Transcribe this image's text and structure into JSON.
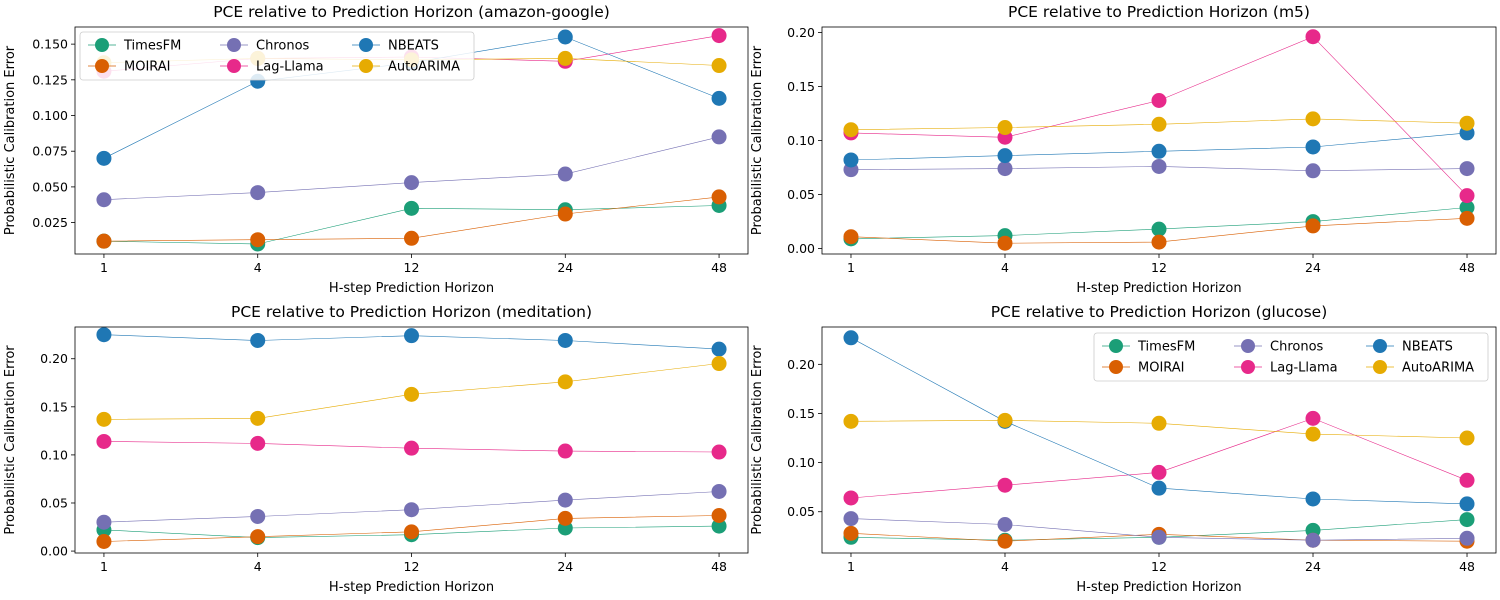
{
  "figure": {
    "colors": {
      "TimesFM": "#1b9e77",
      "MOIRAI": "#d95f02",
      "Chronos": "#7570b3",
      "Lag-Llama": "#e7298a",
      "NBEATS": "#1f77b4",
      "AutoARIMA": "#e6ab02"
    }
  },
  "chart_data": [
    {
      "type": "line",
      "title": "PCE relative to Prediction Horizon (amazon-google)",
      "xlabel": "H-step Prediction Horizon",
      "ylabel": "Probabilistic Calibration Error",
      "categories": [
        "1",
        "4",
        "12",
        "24",
        "48"
      ],
      "ylim": [
        0.003,
        0.162
      ],
      "yticks": [
        0.025,
        0.05,
        0.075,
        0.1,
        0.125,
        0.15
      ],
      "ytick_labels": [
        "0.025",
        "0.050",
        "0.075",
        "0.100",
        "0.125",
        "0.150"
      ],
      "legend": {
        "show": true,
        "position": "upper-left",
        "columns": 3
      },
      "series": [
        {
          "name": "TimesFM",
          "values": [
            0.012,
            0.01,
            0.035,
            0.034,
            0.037
          ]
        },
        {
          "name": "MOIRAI",
          "values": [
            0.012,
            0.013,
            0.014,
            0.031,
            0.043
          ]
        },
        {
          "name": "Chronos",
          "values": [
            0.041,
            0.046,
            0.053,
            0.059,
            0.085
          ]
        },
        {
          "name": "Lag-Llama",
          "values": [
            0.131,
            0.14,
            0.141,
            0.138,
            0.156
          ]
        },
        {
          "name": "NBEATS",
          "values": [
            0.07,
            0.124,
            0.137,
            0.155,
            0.112
          ]
        },
        {
          "name": "AutoARIMA",
          "values": [
            0.137,
            0.14,
            0.139,
            0.14,
            0.135
          ]
        }
      ]
    },
    {
      "type": "line",
      "title": "PCE relative to Prediction Horizon (m5)",
      "xlabel": "H-step Prediction Horizon",
      "ylabel": "Probabilistic Calibration Error",
      "categories": [
        "1",
        "4",
        "12",
        "24",
        "48"
      ],
      "ylim": [
        -0.005,
        0.205
      ],
      "yticks": [
        0,
        0.05,
        0.1,
        0.15,
        0.2
      ],
      "ytick_labels": [
        "0.00",
        "0.05",
        "0.10",
        "0.15",
        "0.20"
      ],
      "legend": {
        "show": false
      },
      "series": [
        {
          "name": "TimesFM",
          "values": [
            0.009,
            0.012,
            0.018,
            0.025,
            0.038
          ]
        },
        {
          "name": "MOIRAI",
          "values": [
            0.011,
            0.005,
            0.006,
            0.021,
            0.028
          ]
        },
        {
          "name": "Chronos",
          "values": [
            0.073,
            0.074,
            0.076,
            0.072,
            0.074
          ]
        },
        {
          "name": "Lag-Llama",
          "values": [
            0.107,
            0.103,
            0.137,
            0.196,
            0.049
          ]
        },
        {
          "name": "NBEATS",
          "values": [
            0.082,
            0.086,
            0.09,
            0.094,
            0.107
          ]
        },
        {
          "name": "AutoARIMA",
          "values": [
            0.11,
            0.112,
            0.115,
            0.12,
            0.116
          ]
        }
      ]
    },
    {
      "type": "line",
      "title": "PCE relative to Prediction Horizon (meditation)",
      "xlabel": "H-step Prediction Horizon",
      "ylabel": "Probabilistic Calibration Error",
      "categories": [
        "1",
        "4",
        "12",
        "24",
        "48"
      ],
      "ylim": [
        -0.002,
        0.233
      ],
      "yticks": [
        0,
        0.05,
        0.1,
        0.15,
        0.2
      ],
      "ytick_labels": [
        "0.00",
        "0.05",
        "0.10",
        "0.15",
        "0.20"
      ],
      "legend": {
        "show": false
      },
      "series": [
        {
          "name": "TimesFM",
          "values": [
            0.022,
            0.014,
            0.017,
            0.024,
            0.026
          ]
        },
        {
          "name": "MOIRAI",
          "values": [
            0.01,
            0.015,
            0.02,
            0.034,
            0.037
          ]
        },
        {
          "name": "Chronos",
          "values": [
            0.03,
            0.036,
            0.043,
            0.053,
            0.062
          ]
        },
        {
          "name": "Lag-Llama",
          "values": [
            0.114,
            0.112,
            0.107,
            0.104,
            0.103
          ]
        },
        {
          "name": "NBEATS",
          "values": [
            0.225,
            0.219,
            0.224,
            0.219,
            0.21
          ]
        },
        {
          "name": "AutoARIMA",
          "values": [
            0.137,
            0.138,
            0.163,
            0.176,
            0.195
          ]
        }
      ]
    },
    {
      "type": "line",
      "title": "PCE relative to Prediction Horizon (glucose)",
      "xlabel": "H-step Prediction Horizon",
      "ylabel": "Probabilistic Calibration Error",
      "categories": [
        "1",
        "4",
        "12",
        "24",
        "48"
      ],
      "ylim": [
        0.008,
        0.238
      ],
      "yticks": [
        0.05,
        0.1,
        0.15,
        0.2
      ],
      "ytick_labels": [
        "0.05",
        "0.10",
        "0.15",
        "0.20"
      ],
      "legend": {
        "show": true,
        "position": "upper-right",
        "columns": 3
      },
      "series": [
        {
          "name": "TimesFM",
          "values": [
            0.024,
            0.021,
            0.024,
            0.031,
            0.042
          ]
        },
        {
          "name": "MOIRAI",
          "values": [
            0.028,
            0.02,
            0.027,
            0.021,
            0.02
          ]
        },
        {
          "name": "Chronos",
          "values": [
            0.043,
            0.037,
            0.024,
            0.021,
            0.023
          ]
        },
        {
          "name": "Lag-Llama",
          "values": [
            0.064,
            0.077,
            0.09,
            0.145,
            0.082
          ]
        },
        {
          "name": "NBEATS",
          "values": [
            0.227,
            0.142,
            0.074,
            0.063,
            0.058
          ]
        },
        {
          "name": "AutoARIMA",
          "values": [
            0.142,
            0.143,
            0.14,
            0.129,
            0.125
          ]
        }
      ]
    }
  ]
}
